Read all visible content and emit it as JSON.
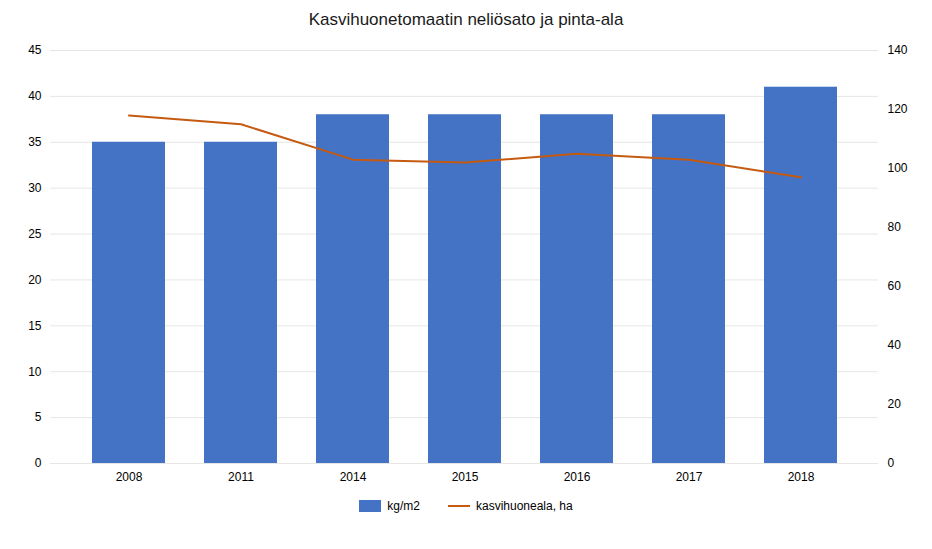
{
  "chart_data": {
    "type": "bar",
    "title": "Kasvihuonetomaatin neliösato ja pinta-ala",
    "categories": [
      "2008",
      "2011",
      "2014",
      "2015",
      "2016",
      "2017",
      "2018"
    ],
    "series": [
      {
        "name": "kg/m2",
        "type": "bar",
        "color": "#4472C4",
        "values": [
          35,
          35,
          38,
          38,
          38,
          38,
          41
        ]
      },
      {
        "name": "kasvihuoneala, ha",
        "type": "line",
        "color": "#C55A11",
        "axis": "y2",
        "values": [
          118,
          115,
          103,
          102,
          105,
          103,
          97
        ]
      }
    ],
    "ylim": [
      0,
      45
    ],
    "yticks": [
      0,
      5,
      10,
      15,
      20,
      25,
      30,
      35,
      40,
      45
    ],
    "y2lim": [
      0,
      140
    ],
    "y2ticks": [
      0,
      20,
      40,
      60,
      80,
      100,
      120,
      140
    ],
    "grid": true,
    "legend": "bottom"
  }
}
